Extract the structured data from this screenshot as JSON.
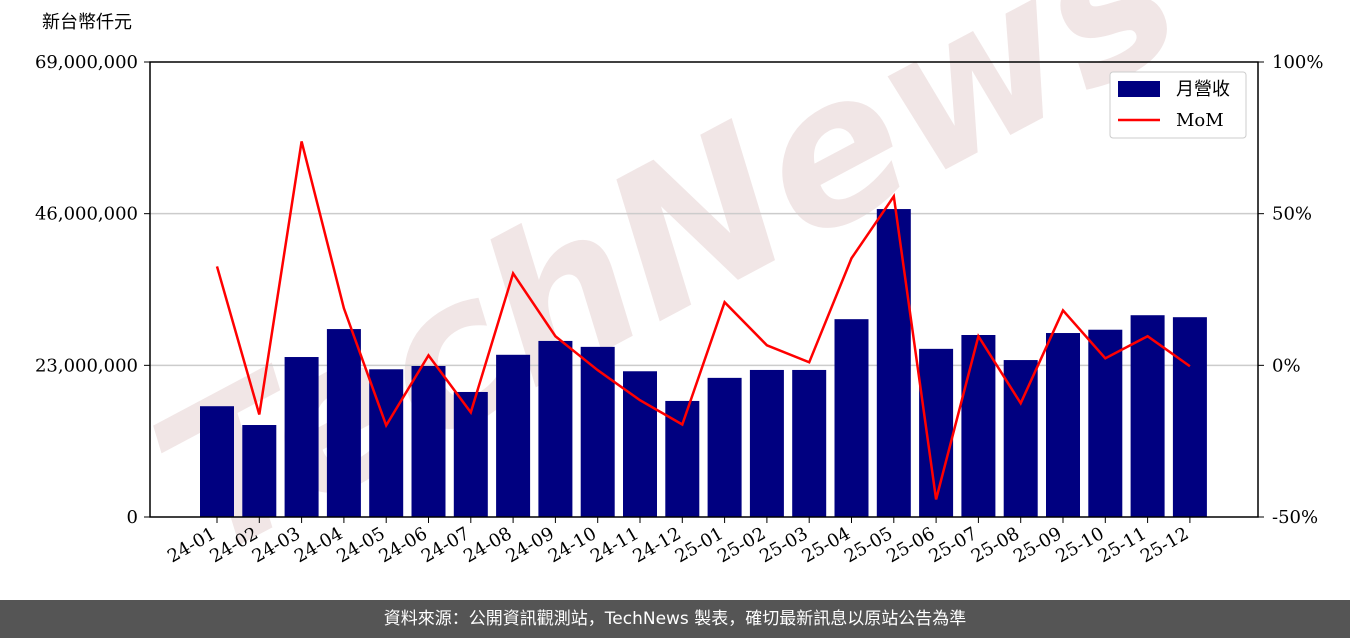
{
  "chart_data": {
    "type": "bar-line",
    "y_label": "新台幣仟元",
    "watermark": "TechNews",
    "categories": [
      "24-01",
      "24-02",
      "24-03",
      "24-04",
      "24-05",
      "24-06",
      "24-07",
      "24-08",
      "24-09",
      "24-10",
      "24-11",
      "24-12",
      "25-01",
      "25-02",
      "25-03",
      "25-04",
      "25-05",
      "25-06",
      "25-07",
      "25-08",
      "25-09",
      "25-10",
      "25-11",
      "25-12"
    ],
    "series": [
      {
        "name": "月營收",
        "type": "bar",
        "color": "#000080",
        "values": [
          16800000,
          13950000,
          24260000,
          28500000,
          22400000,
          22900000,
          18960000,
          24600000,
          26700000,
          25800000,
          22100000,
          17600000,
          21100000,
          22300000,
          22300000,
          30000000,
          46700000,
          25500000,
          27600000,
          23800000,
          27900000,
          28400000,
          30600000,
          30300000
        ]
      },
      {
        "name": "MoM",
        "type": "line",
        "axis": "y2",
        "color": "#ff0000",
        "values": [
          32.6,
          -16.2,
          73.8,
          18.8,
          -19.8,
          3.3,
          -15.5,
          30.3,
          9.6,
          -1.6,
          -11.5,
          -19.5,
          20.8,
          6.6,
          1.0,
          35.3,
          55.7,
          -44.2,
          9.6,
          -12.5,
          18.1,
          2.3,
          9.6,
          -0.3
        ]
      }
    ],
    "ylim": [
      0,
      69000000
    ],
    "yticks": [
      0,
      {
        "value": 23000000,
        "label": "23,000,000"
      },
      {
        "value": 46000000,
        "label": "46,000,000"
      },
      {
        "value": 69000000,
        "label": "69,000,000"
      }
    ],
    "y2lim": [
      -50,
      100
    ],
    "y2ticks": [
      {
        "value": -50,
        "label": "-50%"
      },
      {
        "value": 0,
        "label": "0%"
      },
      {
        "value": 50,
        "label": "50%"
      },
      {
        "value": 100,
        "label": "100%"
      }
    ],
    "grid": true,
    "legend": "upper right"
  },
  "footer": "資料來源：公開資訊觀測站，TechNews 製表，確切最新訊息以原站公告為準"
}
